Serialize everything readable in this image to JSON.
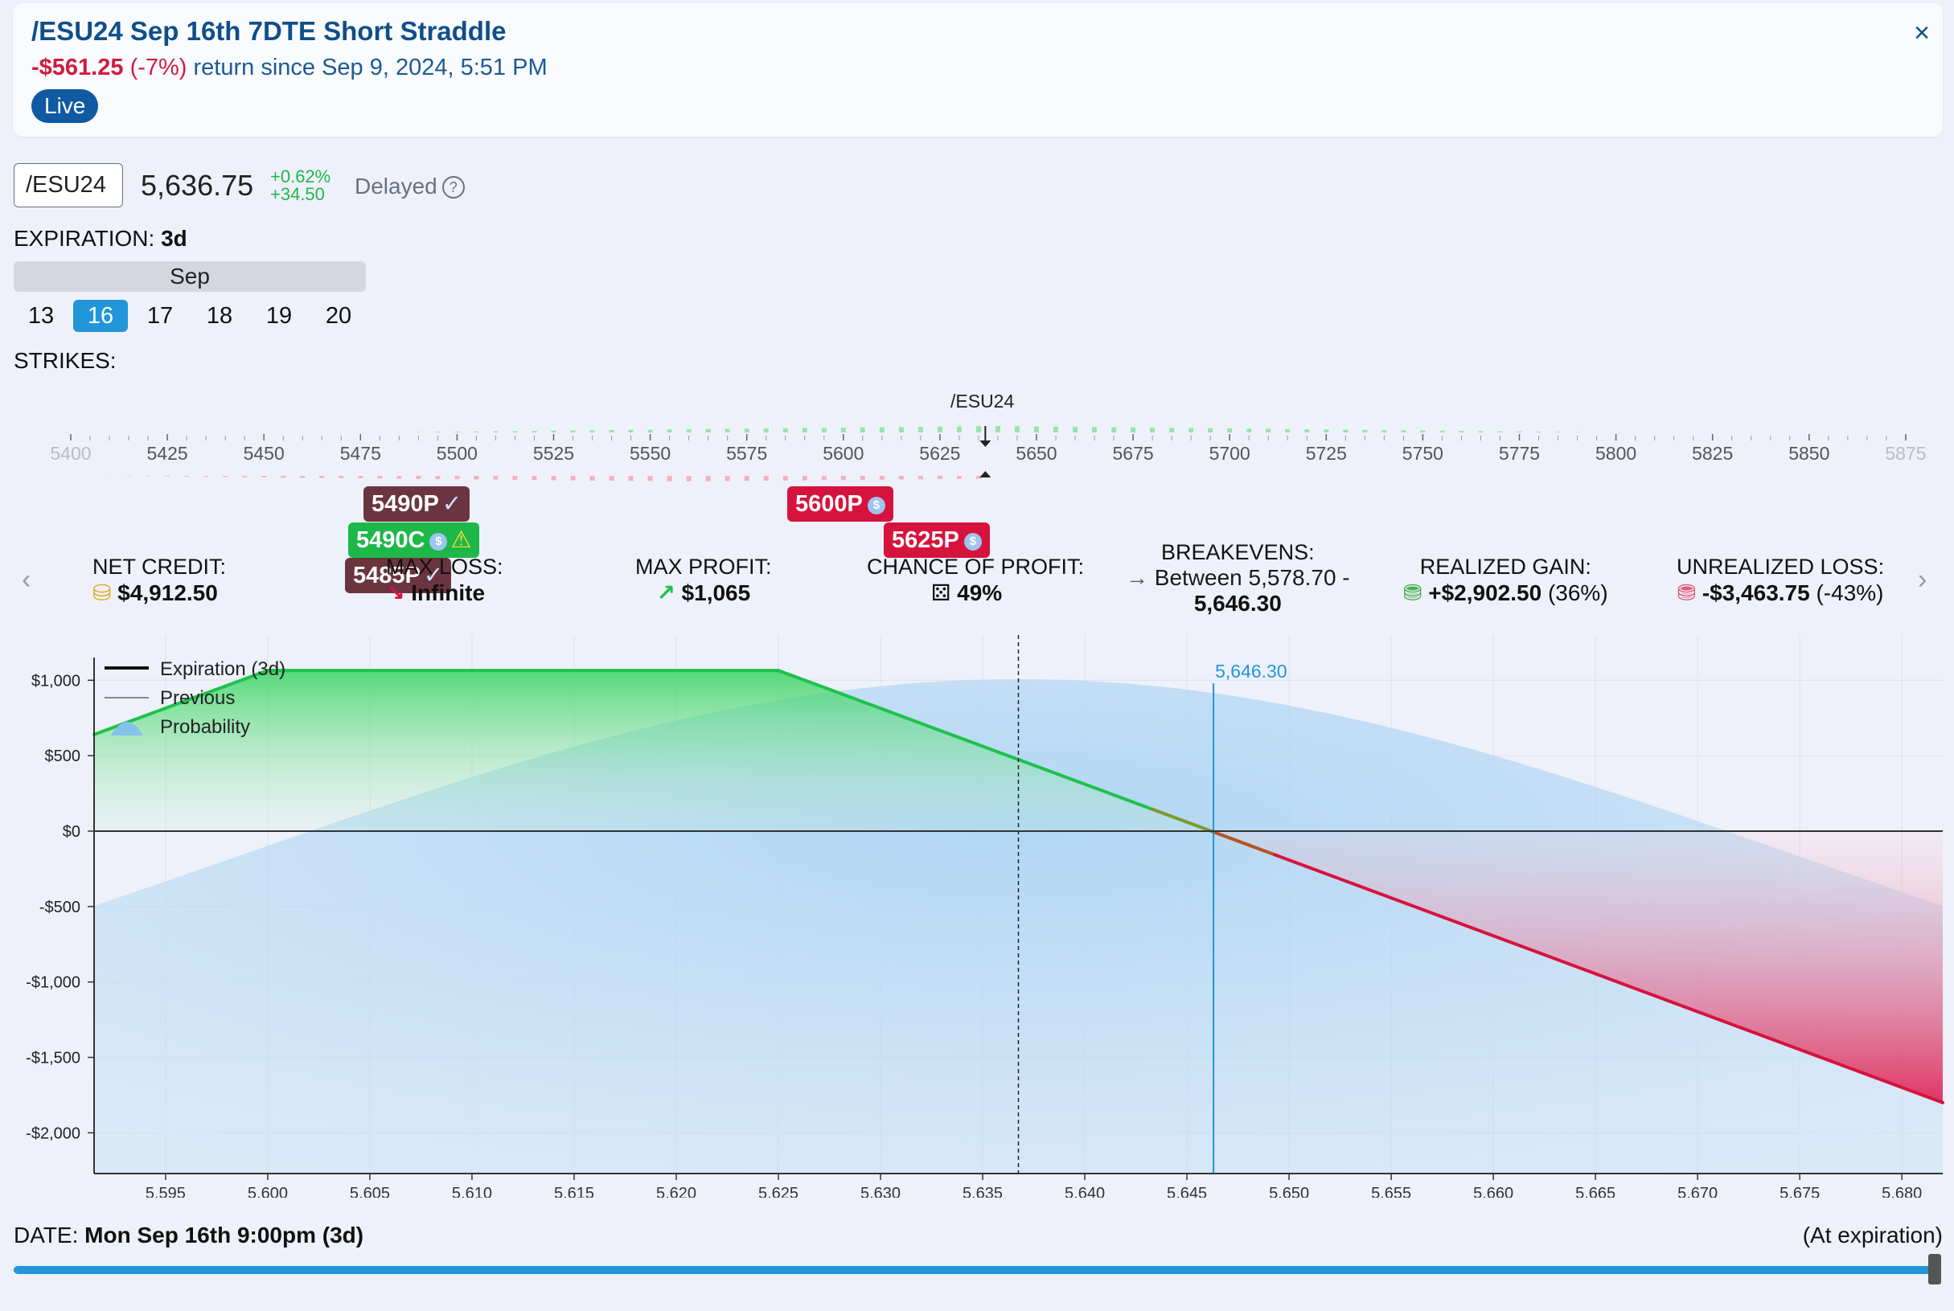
{
  "header": {
    "title": "/ESU24 Sep 16th 7DTE Short Straddle",
    "return_amount": "-$561.25",
    "return_pct": "(-7%)",
    "return_text": "return since Sep 9, 2024, 5:51 PM",
    "badge": "Live",
    "close_icon": "×"
  },
  "quote": {
    "symbol": "/ESU24",
    "price": "5,636.75",
    "change_pct": "+0.62%",
    "change_abs": "+34.50",
    "delayed": "Delayed",
    "help_icon": "?"
  },
  "expiration": {
    "label": "EXPIRATION:",
    "value": "3d",
    "month": "Sep",
    "days": [
      "13",
      "16",
      "17",
      "18",
      "19",
      "20"
    ],
    "selected_day": "16"
  },
  "strikes": {
    "label": "STRIKES:",
    "underlying_marker": "/ESU24",
    "ticks": [
      "5400",
      "5425",
      "5450",
      "5475",
      "5500",
      "5525",
      "5550",
      "5575",
      "5600",
      "5625",
      "5650",
      "5675",
      "5700",
      "5725",
      "5750",
      "5775",
      "5800",
      "5825",
      "5850",
      "5875"
    ],
    "legs": [
      {
        "label": "5490P",
        "icon": "✓",
        "kind": "closed-put"
      },
      {
        "label": "5490C",
        "icon": "$",
        "icon2": "⚠",
        "kind": "call"
      },
      {
        "label": "5485P",
        "icon": "✓",
        "kind": "closed-put"
      },
      {
        "label": "5600P",
        "icon": "$",
        "kind": "put"
      },
      {
        "label": "5625P",
        "icon": "$",
        "kind": "put"
      }
    ]
  },
  "stats": {
    "net_credit_label": "NET CREDIT:",
    "net_credit_value": "$4,912.50",
    "max_loss_label": "MAX LOSS:",
    "max_loss_value": "Infinite",
    "max_profit_label": "MAX PROFIT:",
    "max_profit_value": "$1,065",
    "chance_label": "CHANCE OF PROFIT:",
    "chance_value": "49%",
    "breakevens_label": "BREAKEVENS:",
    "breakevens_line1": "Between 5,578.70 -",
    "breakevens_line2": "5,646.30",
    "realized_label": "REALIZED GAIN:",
    "realized_value": "+$2,902.50",
    "realized_pct": "(36%)",
    "unrealized_label": "UNREALIZED LOSS:",
    "unrealized_value": "-$3,463.75",
    "unrealized_pct": "(-43%)"
  },
  "chart_data": {
    "type": "line",
    "title": "",
    "xlabel": "",
    "ylabel": "",
    "x_ticks": [
      5595,
      5600,
      5605,
      5610,
      5615,
      5620,
      5625,
      5630,
      5635,
      5640,
      5645,
      5650,
      5655,
      5660,
      5665,
      5670,
      5675,
      5680
    ],
    "x_tick_labels": [
      "5,595",
      "5,600",
      "5,605",
      "5,610",
      "5,615",
      "5,620",
      "5,625",
      "5,630",
      "5,635",
      "5,640",
      "5,645",
      "5,650",
      "5,655",
      "5,660",
      "5,665",
      "5,670",
      "5,675",
      "5,680"
    ],
    "y_ticks": [
      1000,
      500,
      0,
      -500,
      -1000,
      -1500,
      -2000
    ],
    "y_tick_labels": [
      "$1,000",
      "$500",
      "$0",
      "-$500",
      "-$1,000",
      "-$1,500",
      "-$2,000"
    ],
    "xlim": [
      5591.5,
      5682
    ],
    "ylim": [
      -2270,
      1300
    ],
    "series": [
      {
        "name": "Expiration (3d)",
        "x": [
          5591.5,
          5600,
          5625,
          5682
        ],
        "y": [
          640,
          1065,
          1065,
          -1800
        ]
      }
    ],
    "legend": [
      "Expiration (3d)",
      "Previous",
      "Probability"
    ],
    "current_price": 5636.75,
    "breakeven": 5646.3,
    "breakeven_label": "5,646.30",
    "probability_peak_x": 5636.75
  },
  "date": {
    "label": "DATE:",
    "value": "Mon Sep 16th 9:00pm (3d)",
    "right_label": "(At expiration)"
  },
  "colors": {
    "profit": "#1ec24a",
    "loss": "#d6133d",
    "accent": "#2196d8",
    "probability": "#a9d2f0"
  }
}
